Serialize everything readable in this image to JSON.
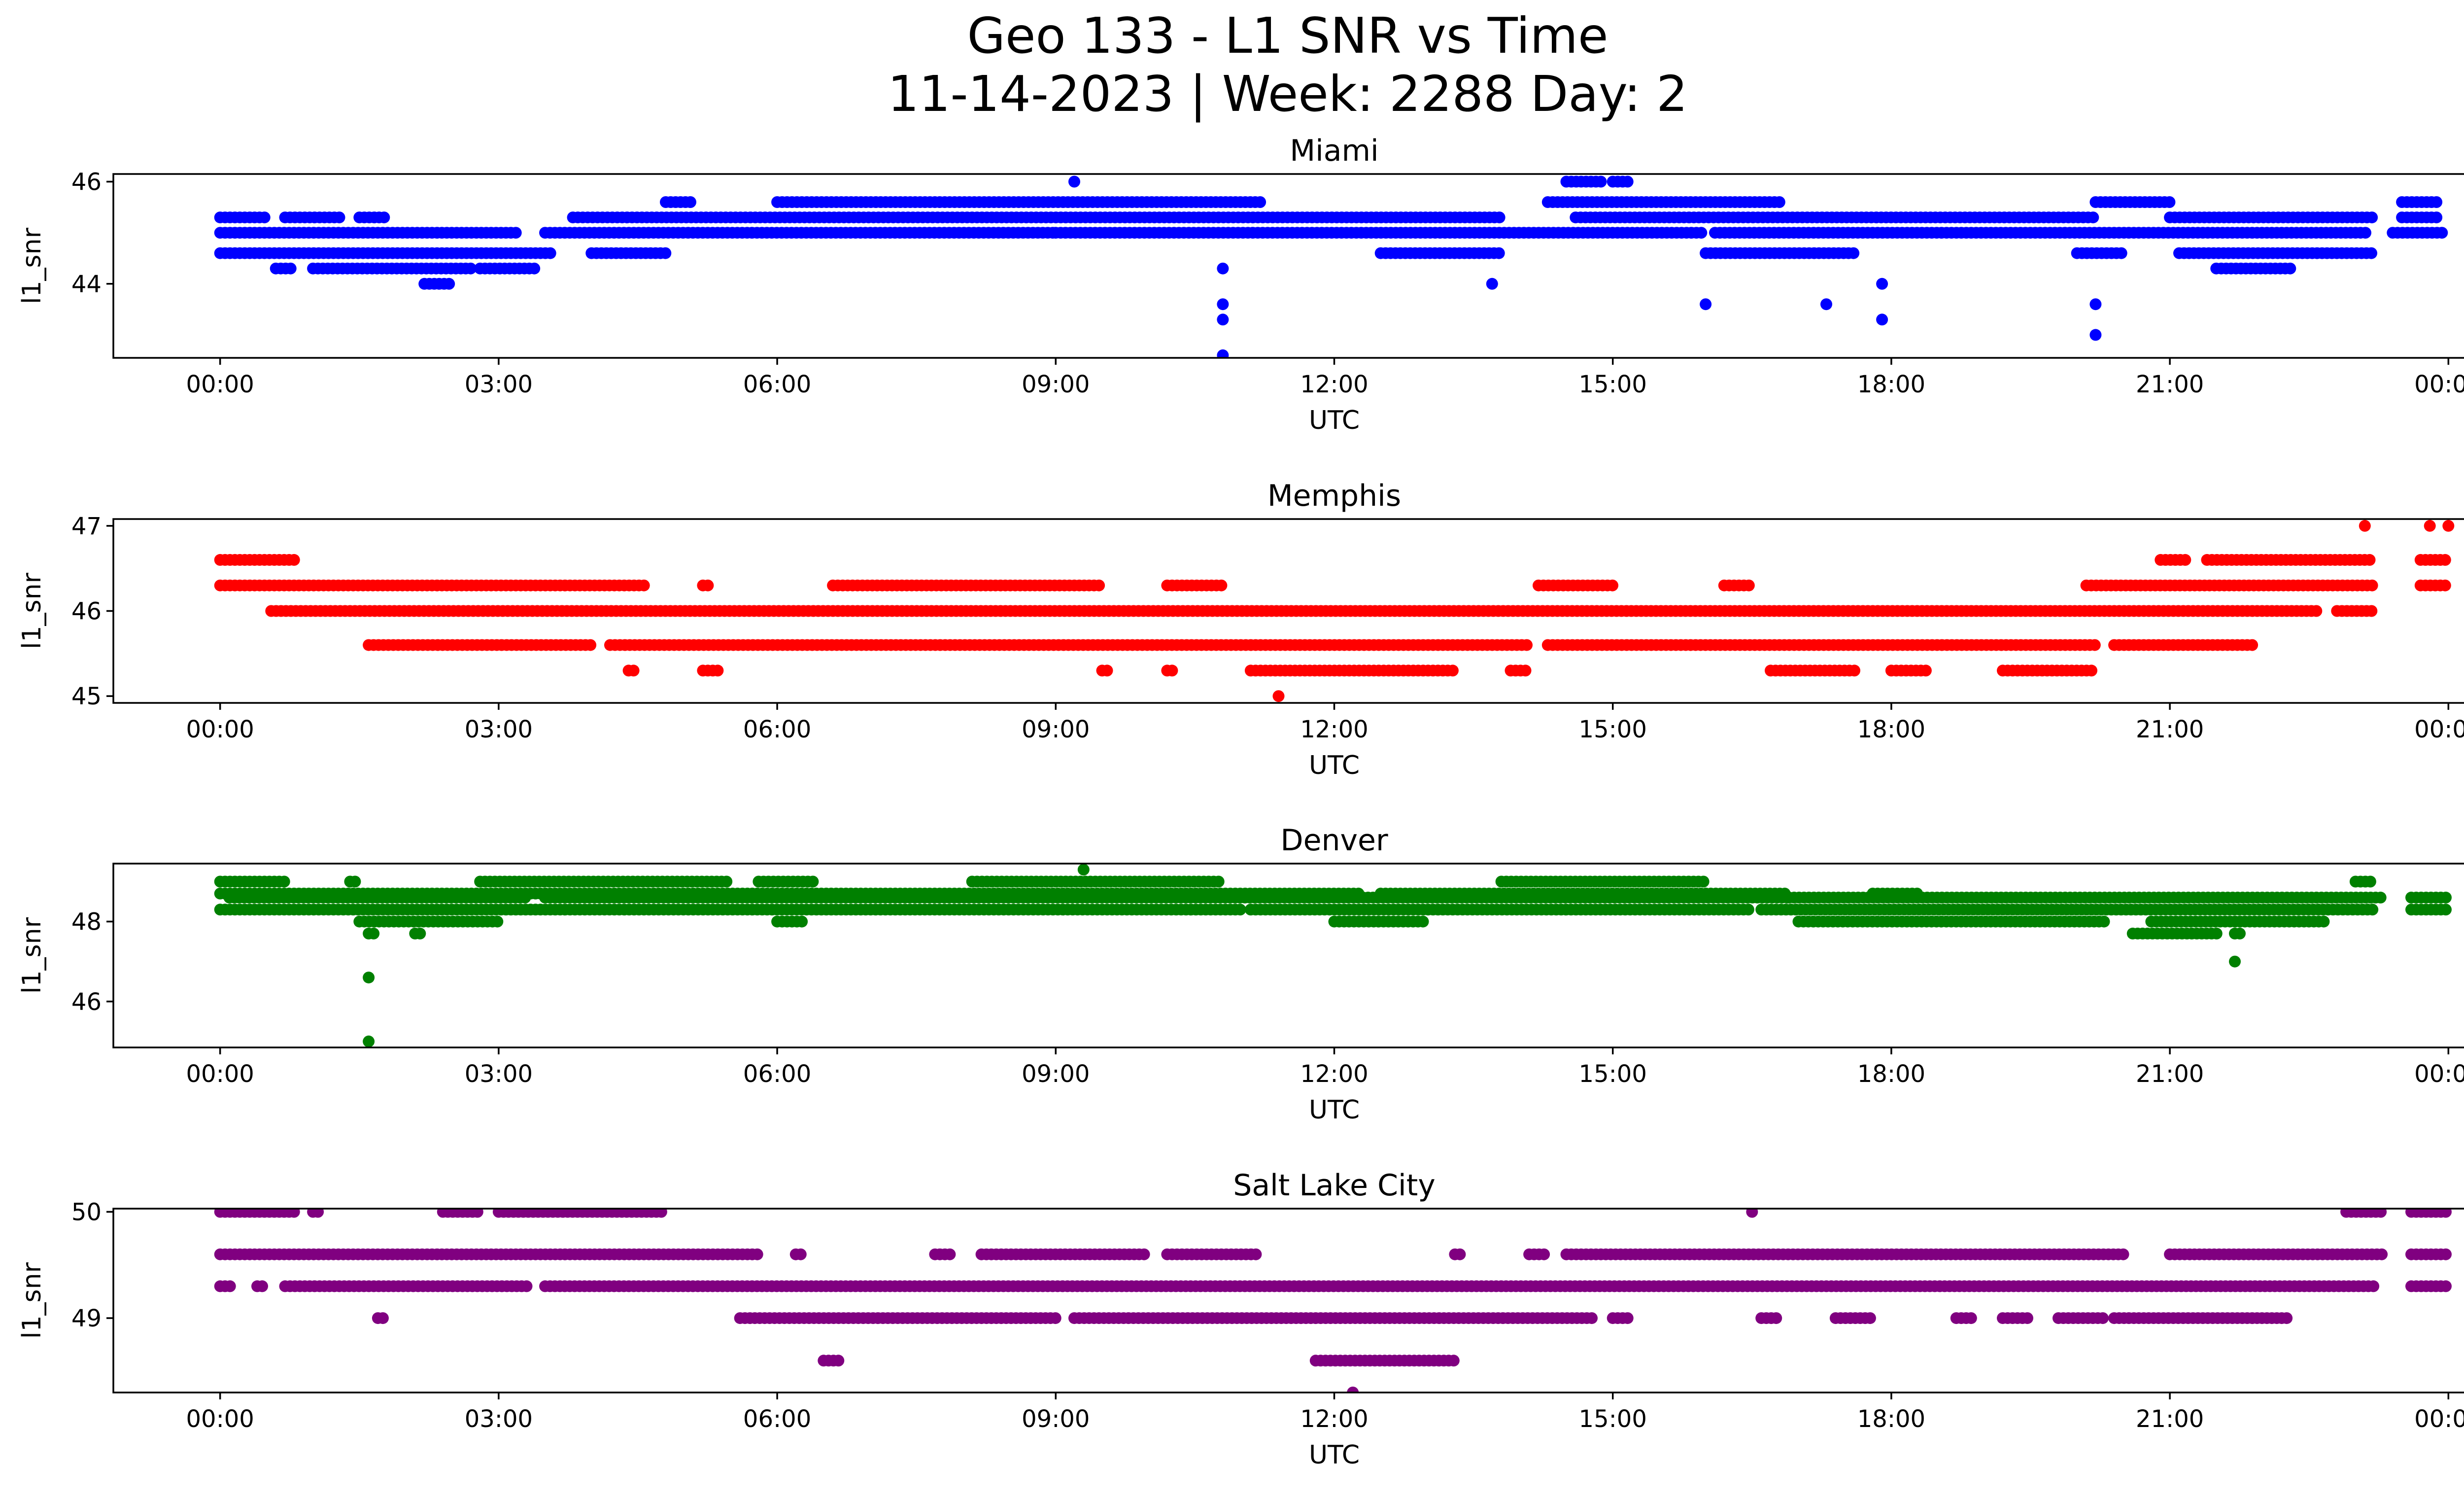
{
  "figure": {
    "title_line1": "Geo 133 - L1 SNR vs Time",
    "title_line2": "11-14-2023 | Week: 2288 Day: 2"
  },
  "chart_data": [
    {
      "type": "scatter",
      "title": "Miami",
      "xlabel": "UTC",
      "ylabel": "l1_snr",
      "color": "#0000ff",
      "x_ticks": [
        "00:00",
        "03:00",
        "06:00",
        "09:00",
        "12:00",
        "15:00",
        "18:00",
        "21:00",
        "00:00"
      ],
      "x_range_hours": [
        -1.15,
        25.15
      ],
      "ylim": [
        42.55,
        46.15
      ],
      "y_ticks": [
        44,
        46
      ],
      "band_runs": [
        {
          "y": 45.0,
          "runs": [
            [
              0,
              3.2
            ],
            [
              3.5,
              9.0
            ],
            [
              9.0,
              16.0
            ],
            [
              16.1,
              23.15
            ],
            [
              23.4,
              23.98
            ]
          ]
        },
        {
          "y": 45.3,
          "runs": [
            [
              0,
              0.5
            ],
            [
              0.7,
              1.3
            ],
            [
              1.5,
              1.8
            ],
            [
              3.8,
              13.8
            ],
            [
              14.6,
              20.2
            ],
            [
              21.0,
              23.2
            ],
            [
              23.5,
              23.9
            ]
          ]
        },
        {
          "y": 44.6,
          "runs": [
            [
              0,
              3.6
            ],
            [
              4.0,
              4.8
            ],
            [
              12.5,
              13.8
            ],
            [
              16.0,
              17.6
            ],
            [
              20.0,
              20.5
            ],
            [
              21.1,
              23.2
            ]
          ]
        },
        {
          "y": 44.3,
          "runs": [
            [
              0.6,
              0.8
            ],
            [
              1.0,
              2.7
            ],
            [
              2.8,
              3.4
            ],
            [
              21.5,
              22.3
            ]
          ]
        },
        {
          "y": 45.6,
          "runs": [
            [
              4.8,
              5.1
            ],
            [
              6.0,
              11.2
            ],
            [
              14.3,
              16.8
            ],
            [
              20.2,
              21.0
            ],
            [
              23.5,
              23.9
            ]
          ]
        },
        {
          "y": 46.0,
          "runs": [
            [
              14.5,
              14.9
            ],
            [
              15.0,
              15.2
            ]
          ]
        },
        {
          "y": 44.0,
          "runs": [
            [
              2.2,
              2.5
            ]
          ]
        }
      ],
      "points": [
        {
          "x": 9.2,
          "y": 46.0
        },
        {
          "x": 10.8,
          "y": 43.6
        },
        {
          "x": 10.8,
          "y": 43.3
        },
        {
          "x": 10.8,
          "y": 42.6
        },
        {
          "x": 10.8,
          "y": 44.3
        },
        {
          "x": 13.7,
          "y": 44.0
        },
        {
          "x": 16.0,
          "y": 43.6
        },
        {
          "x": 17.3,
          "y": 43.6
        },
        {
          "x": 17.9,
          "y": 43.3
        },
        {
          "x": 17.9,
          "y": 44.0
        },
        {
          "x": 20.2,
          "y": 43.6
        },
        {
          "x": 20.2,
          "y": 43.0
        }
      ]
    },
    {
      "type": "scatter",
      "title": "Memphis",
      "xlabel": "UTC",
      "ylabel": "l1_snr",
      "color": "#ff0000",
      "x_ticks": [
        "00:00",
        "03:00",
        "06:00",
        "09:00",
        "12:00",
        "15:00",
        "18:00",
        "21:00",
        "00:00"
      ],
      "x_range_hours": [
        -1.15,
        25.15
      ],
      "ylim": [
        44.92,
        47.08
      ],
      "y_ticks": [
        45,
        46,
        47
      ],
      "band_runs": [
        {
          "y": 46.6,
          "runs": [
            [
              0,
              0.8
            ],
            [
              20.9,
              21.2
            ],
            [
              21.4,
              23.2
            ],
            [
              23.7,
              24.0
            ]
          ]
        },
        {
          "y": 46.3,
          "runs": [
            [
              0,
              4.6
            ],
            [
              5.2,
              5.3
            ],
            [
              6.6,
              9.5
            ],
            [
              10.2,
              10.8
            ],
            [
              14.2,
              15.0
            ],
            [
              16.2,
              16.5
            ],
            [
              20.1,
              23.2
            ],
            [
              23.7,
              24.0
            ]
          ]
        },
        {
          "y": 46.0,
          "runs": [
            [
              0.55,
              22.6
            ],
            [
              22.8,
              23.2
            ]
          ]
        },
        {
          "y": 45.6,
          "runs": [
            [
              1.6,
              4.0
            ],
            [
              4.2,
              14.1
            ],
            [
              14.3,
              20.2
            ],
            [
              20.4,
              21.9
            ]
          ]
        },
        {
          "y": 45.3,
          "runs": [
            [
              4.4,
              4.5
            ],
            [
              5.2,
              5.4
            ],
            [
              9.5,
              9.6
            ],
            [
              10.2,
              10.3
            ],
            [
              11.1,
              13.3
            ],
            [
              13.9,
              14.1
            ],
            [
              16.7,
              17.6
            ],
            [
              18.0,
              18.4
            ],
            [
              19.2,
              20.2
            ]
          ]
        }
      ],
      "points": [
        {
          "x": 11.4,
          "y": 45.0
        },
        {
          "x": 23.1,
          "y": 47.0
        },
        {
          "x": 23.8,
          "y": 47.0
        },
        {
          "x": 24.0,
          "y": 47.0
        }
      ]
    },
    {
      "type": "scatter",
      "title": "Denver",
      "xlabel": "UTC",
      "ylabel": "l1_snr",
      "color": "#008000",
      "x_ticks": [
        "00:00",
        "03:00",
        "06:00",
        "09:00",
        "12:00",
        "15:00",
        "18:00",
        "21:00",
        "00:00"
      ],
      "x_range_hours": [
        -1.15,
        25.15
      ],
      "ylim": [
        44.85,
        49.45
      ],
      "y_ticks": [
        46,
        48
      ],
      "band_runs": [
        {
          "y": 49.0,
          "runs": [
            [
              0,
              0.7
            ],
            [
              1.4,
              1.5
            ],
            [
              2.8,
              5.5
            ],
            [
              5.8,
              6.4
            ],
            [
              8.1,
              10.8
            ],
            [
              13.8,
              16.0
            ],
            [
              23.0,
              23.2
            ]
          ]
        },
        {
          "y": 48.7,
          "runs": [
            [
              0,
              12.3
            ],
            [
              12.5,
              16.9
            ],
            [
              17.8,
              18.3
            ]
          ]
        },
        {
          "y": 48.6,
          "runs": [
            [
              0.1,
              3.3
            ],
            [
              3.5,
              16.9
            ],
            [
              16.9,
              23.3
            ],
            [
              23.6,
              24.0
            ]
          ]
        },
        {
          "y": 48.3,
          "runs": [
            [
              0,
              11.0
            ],
            [
              11.1,
              16.5
            ],
            [
              16.6,
              23.2
            ],
            [
              23.6,
              24.0
            ]
          ]
        },
        {
          "y": 48.0,
          "runs": [
            [
              1.5,
              3.0
            ],
            [
              6.0,
              6.3
            ],
            [
              12.0,
              13.0
            ],
            [
              17.0,
              20.3
            ],
            [
              20.8,
              22.7
            ]
          ]
        },
        {
          "y": 47.7,
          "runs": [
            [
              1.6,
              1.7
            ],
            [
              2.1,
              2.2
            ],
            [
              20.6,
              21.5
            ],
            [
              21.7,
              21.8
            ]
          ]
        }
      ],
      "points": [
        {
          "x": 1.6,
          "y": 46.6
        },
        {
          "x": 1.6,
          "y": 45.0
        },
        {
          "x": 9.3,
          "y": 49.3
        },
        {
          "x": 21.7,
          "y": 47.0
        }
      ]
    },
    {
      "type": "scatter",
      "title": "Salt Lake City",
      "xlabel": "UTC",
      "ylabel": "l1_snr",
      "color": "#800080",
      "x_ticks": [
        "00:00",
        "03:00",
        "06:00",
        "09:00",
        "12:00",
        "15:00",
        "18:00",
        "21:00",
        "00:00"
      ],
      "x_range_hours": [
        -1.15,
        25.15
      ],
      "ylim": [
        48.3,
        50.03
      ],
      "y_ticks": [
        49,
        50
      ],
      "band_runs": [
        {
          "y": 50.0,
          "runs": [
            [
              0,
              0.8
            ],
            [
              1.0,
              1.1
            ],
            [
              2.4,
              2.8
            ],
            [
              3.0,
              4.8
            ],
            [
              22.9,
              23.3
            ],
            [
              23.6,
              24.0
            ]
          ]
        },
        {
          "y": 49.6,
          "runs": [
            [
              0,
              5.8
            ],
            [
              6.2,
              6.3
            ],
            [
              7.7,
              7.9
            ],
            [
              8.2,
              10.0
            ],
            [
              10.2,
              11.2
            ],
            [
              13.3,
              13.4
            ],
            [
              14.1,
              14.3
            ],
            [
              14.5,
              20.5
            ],
            [
              21.0,
              23.3
            ],
            [
              23.6,
              24.0
            ]
          ]
        },
        {
          "y": 49.3,
          "runs": [
            [
              0,
              0.15
            ],
            [
              0.4,
              0.5
            ],
            [
              0.7,
              3.3
            ],
            [
              3.5,
              23.2
            ],
            [
              23.6,
              24.0
            ]
          ]
        },
        {
          "y": 49.0,
          "runs": [
            [
              1.7,
              1.8
            ],
            [
              5.6,
              9.0
            ],
            [
              9.2,
              14.8
            ],
            [
              15.0,
              15.2
            ],
            [
              16.6,
              16.8
            ],
            [
              17.4,
              17.8
            ],
            [
              18.7,
              18.9
            ],
            [
              19.2,
              19.5
            ],
            [
              19.8,
              20.3
            ],
            [
              20.4,
              22.3
            ]
          ]
        },
        {
          "y": 48.6,
          "runs": [
            [
              6.5,
              6.7
            ],
            [
              11.8,
              13.3
            ]
          ]
        }
      ],
      "points": [
        {
          "x": 12.2,
          "y": 48.3
        },
        {
          "x": 16.5,
          "y": 50.0
        }
      ]
    }
  ]
}
